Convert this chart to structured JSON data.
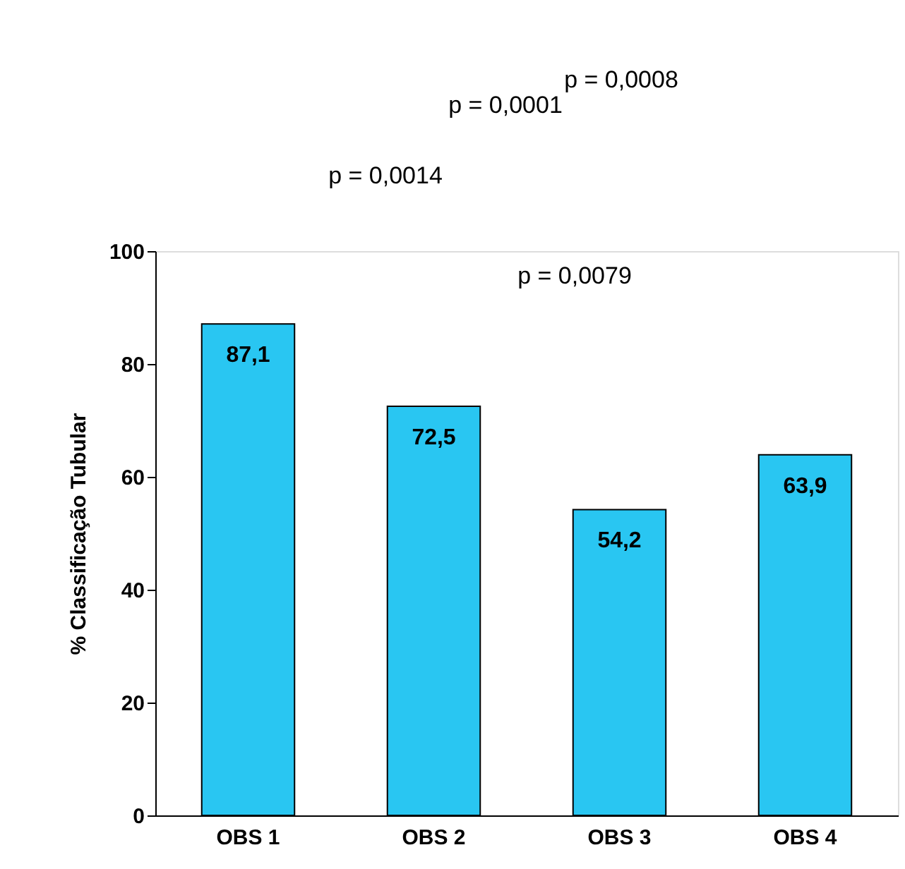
{
  "chart_data": {
    "type": "bar",
    "ylabel": "% Classificação Tubular",
    "categories": [
      "OBS 1",
      "OBS 2",
      "OBS 3",
      "OBS 4"
    ],
    "values": [
      87.1,
      72.5,
      54.2,
      63.9
    ],
    "value_labels": [
      "87,1",
      "72,5",
      "54,2",
      "63,9"
    ],
    "color": "#29c6f2",
    "ylim": [
      0,
      100
    ],
    "yticks": [
      0,
      20,
      40,
      60,
      80,
      100
    ],
    "grid": false,
    "annotations": [
      "p = 0,0008",
      "p = 0,0001",
      "p = 0,0014",
      "p = 0,0079"
    ]
  }
}
